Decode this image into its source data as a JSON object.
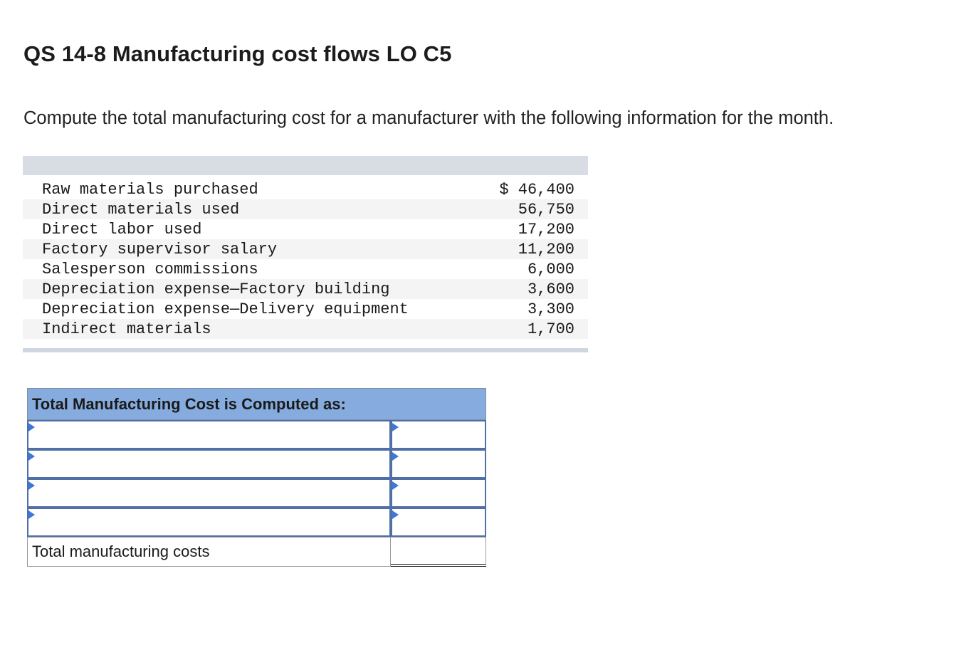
{
  "title": "QS 14-8 Manufacturing cost flows LO C5",
  "instructions": "Compute the total manufacturing cost for a manufacturer with the following information for the month.",
  "given_data": {
    "rows": [
      {
        "label": "Raw materials purchased",
        "value": "$ 46,400"
      },
      {
        "label": "Direct materials used",
        "value": "56,750"
      },
      {
        "label": "Direct labor used",
        "value": "17,200"
      },
      {
        "label": "Factory supervisor salary",
        "value": "11,200"
      },
      {
        "label": "Salesperson commissions",
        "value": "6,000"
      },
      {
        "label": "Depreciation expense—Factory building",
        "value": "3,600"
      },
      {
        "label": "Depreciation expense—Delivery equipment",
        "value": "3,300"
      },
      {
        "label": "Indirect materials",
        "value": "1,700"
      }
    ]
  },
  "worksheet": {
    "header": "Total Manufacturing Cost is Computed as:",
    "input_rows": [
      {
        "label_value": "",
        "amount_value": ""
      },
      {
        "label_value": "",
        "amount_value": ""
      },
      {
        "label_value": "",
        "amount_value": ""
      },
      {
        "label_value": "",
        "amount_value": ""
      }
    ],
    "total_label": "Total manufacturing costs",
    "total_value": ""
  },
  "colors": {
    "worksheet_header_bg": "#86acdf",
    "input_border": "#4f6fa6",
    "dropdown_marker": "#3d78d8",
    "given_header_bg": "#d8dde5"
  }
}
